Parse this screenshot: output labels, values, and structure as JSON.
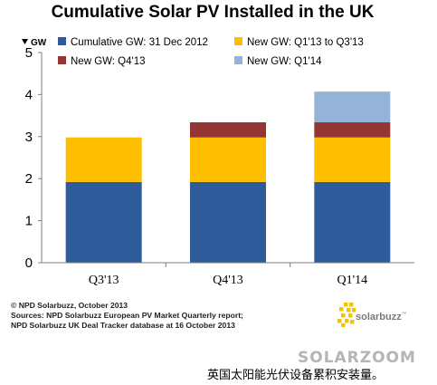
{
  "chart_data": {
    "type": "bar",
    "stacked": true,
    "title": "Cumulative Solar PV Installed in the UK",
    "ylabel": "GW",
    "ylim": [
      0,
      5
    ],
    "yticks": [
      0,
      1,
      2,
      3,
      4,
      5
    ],
    "categories": [
      "Q3'13",
      "Q4'13",
      "Q1'14"
    ],
    "legend_position": "top",
    "series": [
      {
        "name": "Cumulative GW:  31 Dec 2012",
        "color": "#2e5b9a",
        "values": [
          1.92,
          1.92,
          1.92
        ]
      },
      {
        "name": "New GW:  Q1'13 to Q3'13",
        "color": "#fdbf00",
        "values": [
          1.06,
          1.06,
          1.06
        ]
      },
      {
        "name": "New GW:  Q4'13",
        "color": "#943634",
        "values": [
          0,
          0.36,
          0.36
        ]
      },
      {
        "name": "New GW:  Q1'14",
        "color": "#95b3d7",
        "values": [
          0,
          0,
          0.73
        ]
      }
    ]
  },
  "footer": {
    "copyright": "© NPD Solarbuzz, October 2013",
    "sources_line1": "Sources: NPD Solarbuzz European PV Market Quarterly report;",
    "sources_line2": "NPD Solarbuzz UK Deal Tracker database at 16 October 2013"
  },
  "logo": {
    "text": "solarbuzz",
    "tm": "™",
    "color": "#f3c400"
  },
  "watermark": "SOLARZOOM",
  "caption": "英国太阳能光伏设备累积安装量。"
}
